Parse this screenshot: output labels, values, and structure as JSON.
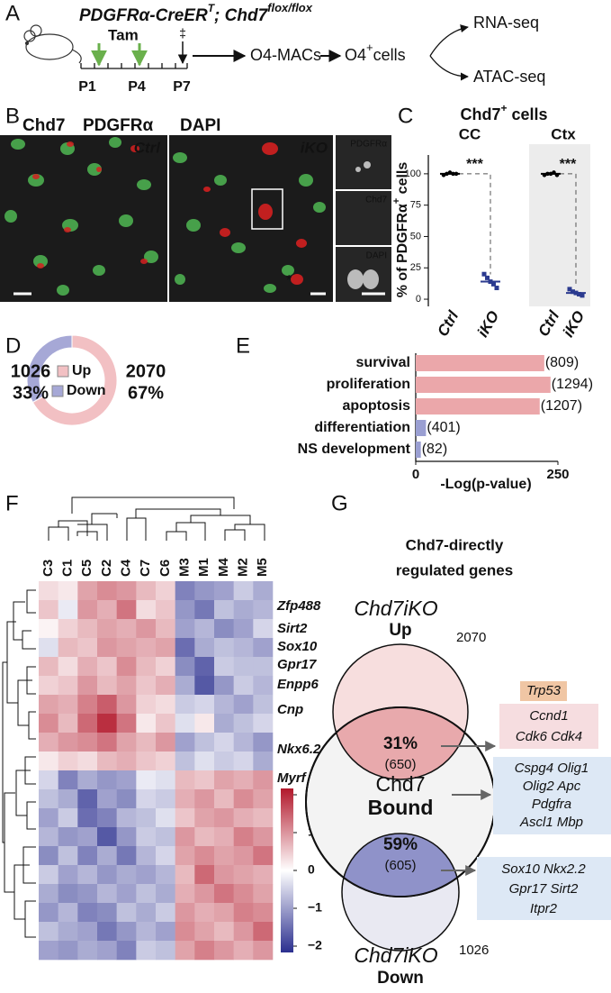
{
  "panel_labels": [
    "A",
    "B",
    "C",
    "D",
    "E",
    "F",
    "G"
  ],
  "panel_a": {
    "genotype": [
      "PDGFRα-CreER",
      "T",
      "; Chd7",
      "flox/flox"
    ],
    "tam": "Tam",
    "days": [
      "P1",
      "P4",
      "P7"
    ],
    "harvest": "‡",
    "steps": [
      "O4-MACs",
      "O4",
      "+",
      "cells"
    ],
    "outputs": [
      "RNA-seq",
      "ATAC-seq"
    ]
  },
  "panel_b": {
    "legend": [
      {
        "name": "Chd7",
        "color": "#3cb44b"
      },
      {
        "name": "PDGFRα",
        "color": "#e0201b"
      },
      {
        "name": "DAPI",
        "color": "#3a6fc4"
      }
    ],
    "images": [
      "Ctrl",
      "iKO"
    ],
    "insets": [
      "PDGFRα",
      "Chd7",
      "DAPI"
    ],
    "asterisk": "*"
  },
  "panel_c": {
    "type": "dot",
    "title": [
      "Chd7",
      "+",
      " cells"
    ],
    "groups": [
      "CC",
      "Ctx"
    ],
    "ylabel": [
      "% of PDGFRα",
      "+",
      " cells"
    ],
    "categories": [
      "Ctrl",
      "iKO",
      "Ctrl",
      "iKO"
    ],
    "colors": [
      "#000000",
      "#2b3a8f",
      "#000000",
      "#2b3a8f"
    ],
    "points": [
      [
        99,
        100,
        101,
        100,
        100
      ],
      [
        20,
        17,
        14,
        12,
        9
      ],
      [
        99,
        100,
        100,
        101,
        99
      ],
      [
        8,
        6,
        5,
        4,
        3
      ]
    ],
    "means": [
      100,
      14,
      100,
      5
    ],
    "significance": [
      "***",
      "***"
    ],
    "ylim": [
      -5,
      115
    ],
    "yticks": [
      0,
      25,
      50,
      75,
      100
    ]
  },
  "panel_d": {
    "type": "donut",
    "categories": [
      "Up",
      "Down"
    ],
    "values": [
      2070,
      1026
    ],
    "share_labels": [
      "67%",
      "33%"
    ],
    "colors": [
      "#f2c0c3",
      "#a6a8d6"
    ]
  },
  "panel_e": {
    "type": "hbar",
    "categories": [
      "survival",
      "proliferation",
      "apoptosis",
      "differentiation",
      "NS development"
    ],
    "values": [
      226,
      237,
      218,
      18,
      9
    ],
    "count_labels": [
      "(809)",
      "(1294)",
      "(1207)",
      "(401)",
      "(82)"
    ],
    "colors": [
      "#eba7aa",
      "#eba7aa",
      "#eba7aa",
      "#9a9fd2",
      "#9a9fd2"
    ],
    "xlabel": "-Log(p-value)",
    "xlim": [
      0,
      250
    ],
    "xticks": [
      0,
      250
    ]
  },
  "panel_f": {
    "type": "heatmap",
    "columns": [
      "C3",
      "C1",
      "C5",
      "C2",
      "C4",
      "C7",
      "C6",
      "M3",
      "M1",
      "M4",
      "M2",
      "M5"
    ],
    "genes": [
      "Zfp488",
      "Sirt2",
      "Sox10",
      "Gpr17",
      "Enpp6",
      "Cnp",
      "Nkx6.2",
      "Myrf"
    ],
    "values": [
      [
        0.3,
        0.2,
        0.8,
        1.0,
        0.9,
        0.6,
        0.4,
        -1.2,
        -1.0,
        -0.9,
        -0.5,
        -0.8
      ],
      [
        0.5,
        -0.2,
        0.9,
        0.7,
        1.2,
        0.3,
        0.5,
        -1.0,
        -1.3,
        -0.6,
        -0.8,
        -0.7
      ],
      [
        0.1,
        0.4,
        0.6,
        0.8,
        0.7,
        0.9,
        0.6,
        -0.9,
        -0.7,
        -1.1,
        -0.9,
        -0.4
      ],
      [
        -0.3,
        0.6,
        0.5,
        0.9,
        0.8,
        0.7,
        0.8,
        -1.4,
        -0.8,
        -0.6,
        -0.7,
        -0.9
      ],
      [
        0.6,
        0.3,
        0.7,
        0.5,
        1.0,
        0.6,
        0.4,
        -1.1,
        -1.5,
        -0.5,
        -0.6,
        -0.6
      ],
      [
        0.4,
        0.5,
        0.9,
        0.6,
        0.8,
        0.5,
        0.7,
        -0.8,
        -1.6,
        -1.0,
        -0.5,
        -0.7
      ],
      [
        0.8,
        0.7,
        1.1,
        1.4,
        0.9,
        0.4,
        0.3,
        -0.5,
        -0.4,
        -0.7,
        -0.9,
        -0.6
      ],
      [
        1.0,
        0.6,
        1.3,
        1.8,
        1.2,
        0.2,
        0.5,
        -0.3,
        0.2,
        -0.8,
        -0.6,
        -0.4
      ],
      [
        0.7,
        0.9,
        1.0,
        1.2,
        0.8,
        0.6,
        0.9,
        -0.9,
        -0.6,
        -0.4,
        -0.7,
        -1.0
      ],
      [
        0.2,
        0.4,
        0.3,
        0.6,
        0.7,
        0.5,
        0.4,
        -0.6,
        -0.3,
        -0.5,
        -0.4,
        -0.8
      ],
      [
        -0.4,
        -1.2,
        -0.8,
        -1.0,
        -0.9,
        -0.2,
        -0.3,
        0.6,
        0.5,
        0.8,
        0.7,
        0.9
      ],
      [
        -0.6,
        -0.8,
        -1.5,
        -0.9,
        -1.1,
        -0.4,
        -0.5,
        0.7,
        0.9,
        0.6,
        1.0,
        0.8
      ],
      [
        -0.9,
        -0.5,
        -1.4,
        -1.2,
        -0.7,
        -0.6,
        -0.3,
        0.5,
        0.8,
        0.9,
        0.7,
        0.6
      ],
      [
        -0.7,
        -1.0,
        -0.9,
        -1.6,
        -1.0,
        -0.5,
        -0.6,
        0.9,
        0.6,
        0.7,
        1.1,
        0.9
      ],
      [
        -1.1,
        -0.6,
        -1.2,
        -0.8,
        -1.3,
        -0.7,
        -0.4,
        0.8,
        1.0,
        0.8,
        0.9,
        1.2
      ],
      [
        -0.5,
        -0.9,
        -0.7,
        -1.0,
        -0.8,
        -0.9,
        -0.7,
        0.6,
        1.3,
        0.9,
        0.8,
        0.7
      ],
      [
        -0.8,
        -1.1,
        -1.0,
        -0.7,
        -0.9,
        -0.6,
        -0.8,
        0.7,
        0.9,
        1.2,
        1.0,
        0.8
      ],
      [
        -1.0,
        -0.7,
        -1.2,
        -1.1,
        -0.6,
        -0.8,
        -0.5,
        0.9,
        0.7,
        0.8,
        1.1,
        1.0
      ],
      [
        -0.6,
        -0.8,
        -0.9,
        -1.3,
        -1.0,
        -0.7,
        -0.9,
        1.0,
        0.8,
        0.6,
        0.9,
        1.3
      ],
      [
        -0.9,
        -1.0,
        -0.8,
        -0.9,
        -1.2,
        -0.5,
        -0.6,
        0.8,
        1.1,
        0.9,
        0.7,
        0.9
      ]
    ],
    "colorbar_lim": [
      -2,
      2
    ],
    "colors": [
      "#2b2f8f",
      "#ffffff",
      "#b2182b"
    ],
    "colorbar_ticks": [
      2,
      1,
      0,
      {
        "value": -1,
        "label": "−1"
      },
      {
        "value": -2,
        "label": "−2"
      }
    ]
  },
  "panel_g": {
    "title": [
      "Chd7-directly",
      "regulated genes"
    ],
    "up": {
      "name": "Chd7iKO",
      "label": "Up",
      "count": "2070"
    },
    "bound": {
      "name": "Chd7",
      "label": "Bound"
    },
    "down": {
      "name": "Chd7iKO",
      "label": "Down",
      "count": "1026"
    },
    "overlap_up": {
      "percent": "31%",
      "count": "(650)"
    },
    "overlap_down": {
      "percent": "59%",
      "count": "(605)"
    },
    "up_genes": {
      "highlight": "Trp53",
      "lines": [
        "Ccnd1",
        "Cdk6 Cdk4"
      ]
    },
    "bound_genes": [
      "Cspg4 Olig1",
      "Olig2 Apc",
      "Pdgfra",
      "Ascl1 Mbp"
    ],
    "down_genes": [
      "Sox10 Nkx2.2",
      "Gpr17 Sirt2",
      "Itpr2"
    ]
  }
}
